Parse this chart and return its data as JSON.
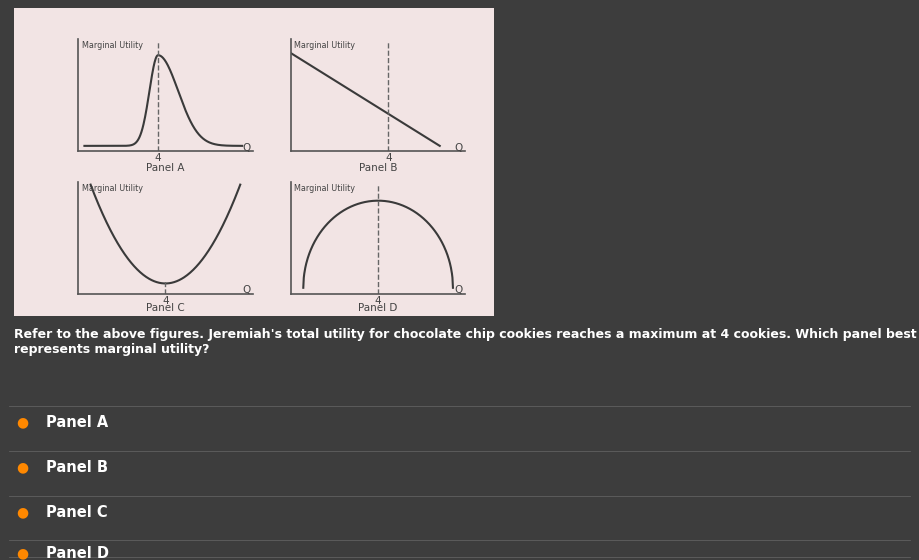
{
  "bg_color": "#3d3d3d",
  "panel_bg": "#f2e4e4",
  "curve_color": "#3a3a3a",
  "dashed_color": "#666666",
  "axis_color": "#555555",
  "text_color": "#ffffff",
  "panel_text_color": "#444444",
  "title_text": "Marginal Utility",
  "panel_labels": [
    "Panel A",
    "Panel B",
    "Panel C",
    "Panel D"
  ],
  "question_text": "Refer to the above figures. Jeremiah's total utility for chocolate chip cookies reaches a maximum at 4 cookies. Which panel best\nrepresents marginal utility?",
  "choices": [
    "Panel A",
    "Panel B",
    "Panel C",
    "Panel D"
  ],
  "dot_color": "#ff8800"
}
